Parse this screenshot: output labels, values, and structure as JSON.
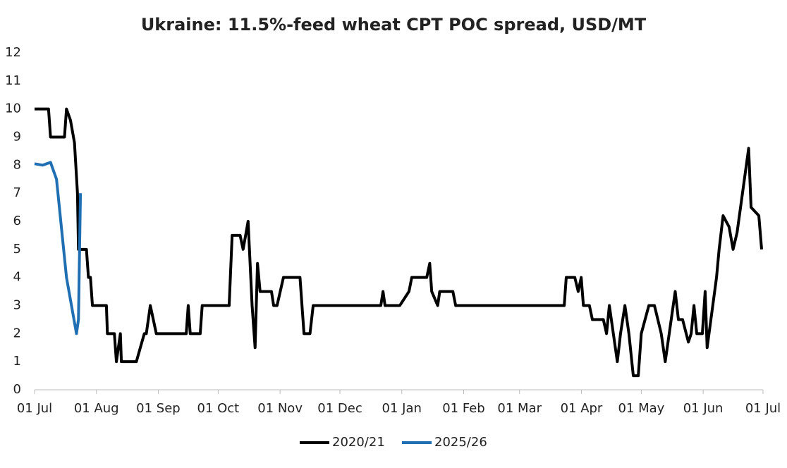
{
  "chart_data": {
    "type": "line",
    "title": "Ukraine: 11.5%-feed wheat CPT POC spread, USD/MT",
    "xlim": [
      0,
      365
    ],
    "xticks": [
      {
        "value": 0,
        "label": "01 Jul"
      },
      {
        "value": 31,
        "label": "01 Aug"
      },
      {
        "value": 62,
        "label": "01 Sep"
      },
      {
        "value": 92,
        "label": "01 Oct"
      },
      {
        "value": 123,
        "label": "01 Nov"
      },
      {
        "value": 153,
        "label": "01 Dec"
      },
      {
        "value": 184,
        "label": "01 Jan"
      },
      {
        "value": 215,
        "label": "01 Feb"
      },
      {
        "value": 243,
        "label": "01 Mar"
      },
      {
        "value": 274,
        "label": "01 Apr"
      },
      {
        "value": 304,
        "label": "01 May"
      },
      {
        "value": 335,
        "label": "01 Jun"
      },
      {
        "value": 365,
        "label": "01 Jul"
      }
    ],
    "ylim": [
      0,
      12
    ],
    "yticks": [
      0,
      1,
      2,
      3,
      4,
      5,
      6,
      7,
      8,
      9,
      10,
      11,
      12
    ],
    "series": [
      {
        "name": "2020/21",
        "color": "#000000",
        "x": [
          0,
          7,
          8,
          15,
          16,
          18,
          20,
          21.5,
          22,
          24,
          26,
          27,
          28,
          29,
          36,
          36.5,
          40,
          41,
          43,
          43.5,
          51,
          55,
          56,
          58,
          61,
          76,
          77,
          78,
          83,
          84,
          97.5,
          99,
          103,
          104.5,
          107,
          109,
          110.5,
          111.7,
          113,
          118.7,
          119.8,
          121.5,
          124.7,
          133,
          134,
          135,
          138,
          139.6,
          172,
          173.5,
          174.6,
          175.6,
          183,
          187.6,
          189,
          196.5,
          198,
          199,
          202,
          203,
          209.6,
          211,
          265.4,
          266.4,
          270.7,
          272.4,
          273.9,
          275,
          278,
          279.5,
          285,
          286.6,
          288,
          289,
          292,
          293.6,
          295.8,
          297.8,
          300,
          302.5,
          304,
          307.8,
          310.6,
          314,
          316,
          321,
          322.6,
          324.7,
          327.6,
          329,
          330.4,
          331.8,
          334.6,
          336,
          337,
          341.7,
          343,
          345,
          348,
          350,
          352,
          357.8,
          359,
          362.9,
          364.3
        ],
        "values": [
          10,
          10,
          9,
          9,
          10,
          9.6,
          8.8,
          7,
          5,
          5,
          5,
          4,
          4,
          3,
          3,
          2,
          2,
          1,
          2,
          1,
          1,
          2,
          2,
          3,
          2,
          2,
          3,
          2,
          2,
          3,
          3,
          5.5,
          5.5,
          5,
          6,
          3,
          1.5,
          4.5,
          3.5,
          3.5,
          3,
          3,
          4,
          4,
          3,
          2,
          2,
          3,
          3,
          3,
          3.5,
          3,
          3,
          3.5,
          4,
          4,
          4.5,
          3.5,
          3,
          3.5,
          3.5,
          3,
          3,
          4,
          4,
          3.5,
          4,
          3,
          3,
          2.5,
          2.5,
          2,
          3,
          2.5,
          1,
          2,
          3,
          2,
          0.5,
          0.5,
          2,
          3,
          3,
          2,
          1,
          3.5,
          2.5,
          2.5,
          1.7,
          2,
          3,
          2,
          2,
          3.5,
          1.5,
          4,
          5,
          6.2,
          5.8,
          5,
          5.6,
          8.6,
          6.5,
          6.2,
          5
        ]
      },
      {
        "name": "2025/26",
        "color": "#1f6fb2",
        "x": [
          0,
          4,
          8,
          11,
          16,
          21,
          22,
          23
        ],
        "values": [
          8.05,
          8,
          8.1,
          7.5,
          4,
          2,
          2.5,
          7
        ]
      }
    ]
  }
}
